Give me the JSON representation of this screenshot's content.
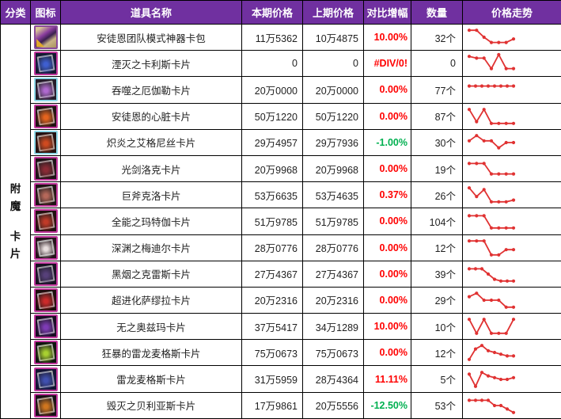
{
  "colors": {
    "header_bg": "#7030A0",
    "header_text": "#FFFFFF",
    "grid_line": "#000000",
    "text": "#1F1F1F",
    "up": "#FF0000",
    "down": "#00B050",
    "spark_line": "#E03232"
  },
  "header": {
    "columns": [
      "分类",
      "图标",
      "道具名称",
      "本期价格",
      "上期价格",
      "对比增幅",
      "数量",
      "价格走势"
    ]
  },
  "category": {
    "label": "附魔卡片"
  },
  "rows": [
    {
      "name": "安徒恩团队模式神器卡包",
      "current_price": "11万5362",
      "previous_price": "10万4875",
      "change": "10.00%",
      "change_dir": "up",
      "quantity": "32个",
      "icon": {
        "name": "card-pack-icon",
        "type": "pack",
        "border": "#8a4a9a",
        "bg": "#cdb88f",
        "art": "#8e44ad"
      },
      "trend": [
        9,
        9,
        5,
        2,
        2,
        2,
        4
      ]
    },
    {
      "name": "湮灭之卡利斯卡片",
      "current_price": "0",
      "previous_price": "0",
      "change": "#DIV/0!",
      "change_dir": "error",
      "quantity": "0",
      "icon": {
        "name": "blue-monster-card-icon",
        "type": "card",
        "border": "#c2389d",
        "bg": "#141830",
        "art": "#3f5fd0"
      },
      "trend": [
        9,
        8,
        8,
        2,
        10,
        2,
        2
      ]
    },
    {
      "name": "吞噬之厄伽勒卡片",
      "current_price": "20万0000",
      "previous_price": "20万0000",
      "change": "0.00%",
      "change_dir": "up",
      "quantity": "77个",
      "icon": {
        "name": "purple-skull-card-icon",
        "type": "card",
        "border": "#8fd8e8",
        "bg": "#241c28",
        "art": "#b06ad0"
      },
      "trend": [
        7,
        7,
        7,
        7,
        7,
        7,
        7,
        7
      ]
    },
    {
      "name": "安徒恩的心脏卡片",
      "current_price": "50万1220",
      "previous_price": "50万1220",
      "change": "0.00%",
      "change_dir": "up",
      "quantity": "87个",
      "icon": {
        "name": "orange-fireball-card-icon",
        "type": "card",
        "border": "#c2389d",
        "bg": "#1f1212",
        "art": "#e5641e"
      },
      "trend": [
        9,
        2,
        9,
        1,
        1,
        1,
        1
      ]
    },
    {
      "name": "炽炎之艾格尼丝卡片",
      "current_price": "29万4957",
      "previous_price": "29万7936",
      "change": "-1.00%",
      "change_dir": "down",
      "quantity": "30个",
      "icon": {
        "name": "red-dragon-card-icon",
        "type": "card",
        "border": "#8fd8e8",
        "bg": "#231212",
        "art": "#cf4a20"
      },
      "trend": [
        6,
        9,
        6,
        6,
        2,
        5,
        5
      ]
    },
    {
      "name": "光剑洛克卡片",
      "current_price": "20万9968",
      "previous_price": "20万9968",
      "change": "0.00%",
      "change_dir": "up",
      "quantity": "19个",
      "icon": {
        "name": "dark-red-figure-card-icon",
        "type": "card",
        "border": "#c2389d",
        "bg": "#1c1216",
        "art": "#8a2a35"
      },
      "trend": [
        8,
        8,
        8,
        2,
        2,
        2,
        2
      ]
    },
    {
      "name": "巨斧克洛卡片",
      "current_price": "53万6635",
      "previous_price": "53万4635",
      "change": "0.37%",
      "change_dir": "up",
      "quantity": "26个",
      "icon": {
        "name": "axe-warrior-card-icon",
        "type": "card",
        "border": "#c2389d",
        "bg": "#1d1314",
        "art": "#b5685a"
      },
      "trend": [
        9,
        4,
        8,
        1,
        1,
        1,
        2
      ]
    },
    {
      "name": "全能之玛特伽卡片",
      "current_price": "51万9785",
      "previous_price": "51万9785",
      "change": "0.00%",
      "change_dir": "up",
      "quantity": "104个",
      "icon": {
        "name": "red-demon-card-icon",
        "type": "card",
        "border": "#c2389d",
        "bg": "#200f0f",
        "art": "#c03a28"
      },
      "trend": [
        8,
        8,
        8,
        1,
        1,
        1,
        1
      ]
    },
    {
      "name": "深渊之梅迪尔卡片",
      "current_price": "28万0776",
      "previous_price": "28万0776",
      "change": "0.00%",
      "change_dir": "up",
      "quantity": "12个",
      "icon": {
        "name": "white-haired-woman-card-icon",
        "type": "card",
        "border": "#c2389d",
        "bg": "#241219",
        "art": "#e8dede"
      },
      "trend": [
        9,
        9,
        9,
        1,
        1,
        4,
        4
      ]
    },
    {
      "name": "黑烟之克雷斯卡片",
      "current_price": "27万4367",
      "previous_price": "27万4367",
      "change": "0.00%",
      "change_dir": "up",
      "quantity": "39个",
      "icon": {
        "name": "dark-hood-card-icon",
        "type": "card",
        "border": "#c2389d",
        "bg": "#161020",
        "art": "#57407a"
      },
      "trend": [
        8,
        8,
        8,
        5,
        2,
        1,
        1,
        1
      ]
    },
    {
      "name": "超进化萨缪拉卡片",
      "current_price": "20万2316",
      "previous_price": "20万2316",
      "change": "0.00%",
      "change_dir": "up",
      "quantity": "29个",
      "icon": {
        "name": "red-beast-card-icon",
        "type": "card",
        "border": "#c2389d",
        "bg": "#1c0d0d",
        "art": "#cc2a2a"
      },
      "trend": [
        7,
        9,
        5,
        5,
        5,
        1,
        1
      ]
    },
    {
      "name": "无之奥兹玛卡片",
      "current_price": "37万5417",
      "previous_price": "34万1289",
      "change": "10.00%",
      "change_dir": "up",
      "quantity": "10个",
      "icon": {
        "name": "purple-demon-face-card-icon",
        "type": "card",
        "border": "#c2389d",
        "bg": "#170b22",
        "art": "#7e3bb5"
      },
      "trend": [
        9,
        1,
        9,
        1,
        1,
        1,
        9
      ]
    },
    {
      "name": "狂暴的雷龙麦格斯卡片",
      "current_price": "75万0673",
      "previous_price": "75万0673",
      "change": "0.00%",
      "change_dir": "up",
      "quantity": "12个",
      "icon": {
        "name": "green-eyes-dragon-card-icon",
        "type": "card",
        "border": "#c2389d",
        "bg": "#0e140e",
        "art": "#a8d030"
      },
      "trend": [
        1,
        7,
        9,
        6,
        5,
        4,
        3,
        3
      ]
    },
    {
      "name": "雷龙麦格斯卡片",
      "current_price": "31万5959",
      "previous_price": "28万4364",
      "change": "11.11%",
      "change_dir": "up",
      "quantity": "5个",
      "icon": {
        "name": "blue-dragon-card-icon",
        "type": "card",
        "border": "#c2389d",
        "bg": "#121231",
        "art": "#4050b0"
      },
      "trend": [
        8,
        1,
        9,
        7,
        6,
        5,
        5,
        6
      ]
    },
    {
      "name": "毁灭之贝利亚斯卡片",
      "current_price": "17万9861",
      "previous_price": "20万5556",
      "change": "-12.50%",
      "change_dir": "down",
      "quantity": "53个",
      "icon": {
        "name": "orange-eyes-demon-card-icon",
        "type": "card",
        "border": "#c2389d",
        "bg": "#161016",
        "art": "#d0761f"
      },
      "trend": [
        8,
        8,
        8,
        8,
        5,
        5,
        3,
        1
      ]
    }
  ]
}
